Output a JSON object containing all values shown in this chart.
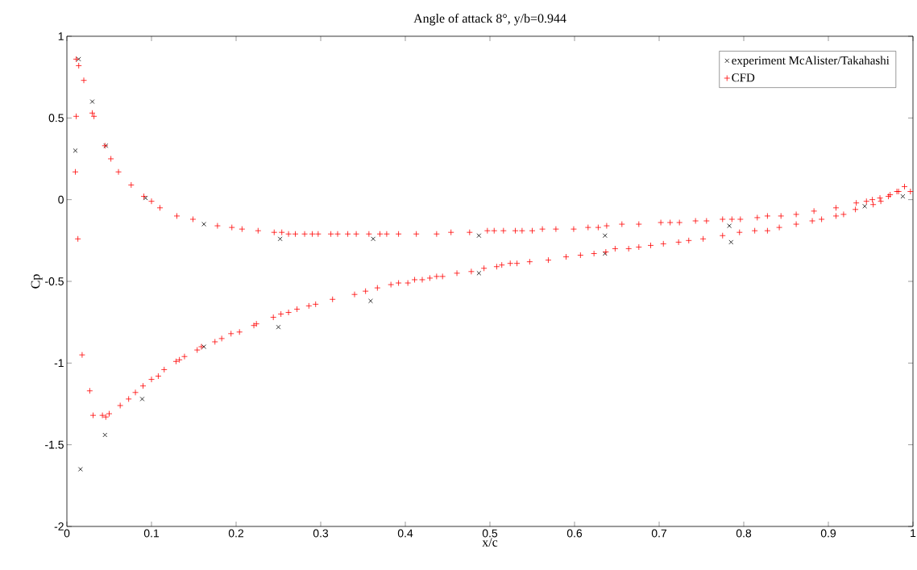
{
  "chart_data": {
    "type": "scatter",
    "title": "Angle of attack 8°, y/b=0.944",
    "xlabel": "x/c",
    "ylabel": "Cp",
    "xlim": [
      0,
      1
    ],
    "ylim": [
      -2,
      1
    ],
    "xticks": [
      0,
      0.1,
      0.2,
      0.3,
      0.4,
      0.5,
      0.6,
      0.7,
      0.8,
      0.9,
      1
    ],
    "yticks": [
      -2,
      -1.5,
      -1,
      -0.5,
      0,
      0.5,
      1
    ],
    "legend": "top right",
    "grid": false,
    "series": [
      {
        "name": "experiment McAlister/Takahashi",
        "color": "#000000",
        "marker": "x",
        "x": [
          0.014,
          0.03,
          0.01,
          0.046,
          0.093,
          0.162,
          0.252,
          0.362,
          0.487,
          0.636,
          0.783,
          0.988,
          0.016,
          0.045,
          0.089,
          0.162,
          0.25,
          0.359,
          0.487,
          0.636,
          0.785,
          0.943
        ],
        "values": [
          0.86,
          0.6,
          0.3,
          0.33,
          0.01,
          -0.15,
          -0.24,
          -0.24,
          -0.22,
          -0.22,
          -0.16,
          0.02,
          -1.65,
          -1.44,
          -1.22,
          -0.9,
          -0.78,
          -0.62,
          -0.45,
          -0.33,
          -0.26,
          -0.04
        ]
      },
      {
        "name": "CFD",
        "color": "#ff0000",
        "marker": "cross",
        "x": [
          0.011,
          0.014,
          0.02,
          0.011,
          0.03,
          0.032,
          0.045,
          0.052,
          0.061,
          0.076,
          0.091,
          0.1,
          0.11,
          0.13,
          0.149,
          0.178,
          0.195,
          0.207,
          0.226,
          0.245,
          0.254,
          0.262,
          0.27,
          0.281,
          0.29,
          0.297,
          0.312,
          0.32,
          0.332,
          0.342,
          0.357,
          0.37,
          0.378,
          0.392,
          0.413,
          0.437,
          0.454,
          0.476,
          0.497,
          0.505,
          0.516,
          0.53,
          0.538,
          0.55,
          0.562,
          0.578,
          0.599,
          0.616,
          0.628,
          0.638,
          0.656,
          0.676,
          0.702,
          0.713,
          0.724,
          0.743,
          0.756,
          0.775,
          0.786,
          0.796,
          0.816,
          0.828,
          0.844,
          0.862,
          0.883,
          0.909,
          0.933,
          0.945,
          0.952,
          0.961,
          0.973,
          0.981,
          0.99,
          0.997,
          0.01,
          0.013,
          0.018,
          0.027,
          0.031,
          0.042,
          0.046,
          0.05,
          0.063,
          0.073,
          0.081,
          0.09,
          0.1,
          0.108,
          0.115,
          0.129,
          0.133,
          0.139,
          0.154,
          0.159,
          0.175,
          0.183,
          0.194,
          0.204,
          0.221,
          0.224,
          0.244,
          0.253,
          0.262,
          0.272,
          0.286,
          0.294,
          0.314,
          0.34,
          0.353,
          0.367,
          0.383,
          0.392,
          0.403,
          0.411,
          0.42,
          0.429,
          0.437,
          0.444,
          0.461,
          0.478,
          0.493,
          0.508,
          0.514,
          0.524,
          0.532,
          0.547,
          0.569,
          0.59,
          0.607,
          0.623,
          0.637,
          0.648,
          0.664,
          0.676,
          0.69,
          0.705,
          0.723,
          0.735,
          0.752,
          0.775,
          0.795,
          0.813,
          0.828,
          0.842,
          0.862,
          0.881,
          0.892,
          0.909,
          0.918,
          0.932,
          0.953,
          0.962,
          0.971,
          0.983
        ],
        "values": [
          0.86,
          0.82,
          0.73,
          0.51,
          0.53,
          0.51,
          0.33,
          0.25,
          0.17,
          0.09,
          0.02,
          -0.01,
          -0.05,
          -0.1,
          -0.12,
          -0.16,
          -0.17,
          -0.18,
          -0.19,
          -0.2,
          -0.2,
          -0.21,
          -0.21,
          -0.21,
          -0.21,
          -0.21,
          -0.21,
          -0.21,
          -0.21,
          -0.21,
          -0.21,
          -0.21,
          -0.21,
          -0.21,
          -0.21,
          -0.21,
          -0.2,
          -0.2,
          -0.19,
          -0.19,
          -0.19,
          -0.19,
          -0.19,
          -0.19,
          -0.18,
          -0.18,
          -0.18,
          -0.17,
          -0.17,
          -0.16,
          -0.15,
          -0.15,
          -0.14,
          -0.14,
          -0.14,
          -0.13,
          -0.13,
          -0.12,
          -0.12,
          -0.12,
          -0.11,
          -0.1,
          -0.1,
          -0.09,
          -0.07,
          -0.05,
          -0.02,
          -0.01,
          0.0,
          0.01,
          0.03,
          0.05,
          0.08,
          0.05,
          0.17,
          -0.24,
          -0.95,
          -1.17,
          -1.32,
          -1.32,
          -1.33,
          -1.31,
          -1.26,
          -1.22,
          -1.18,
          -1.14,
          -1.1,
          -1.08,
          -1.04,
          -0.99,
          -0.98,
          -0.96,
          -0.92,
          -0.9,
          -0.87,
          -0.85,
          -0.82,
          -0.81,
          -0.77,
          -0.76,
          -0.72,
          -0.7,
          -0.69,
          -0.67,
          -0.65,
          -0.64,
          -0.61,
          -0.58,
          -0.56,
          -0.54,
          -0.52,
          -0.51,
          -0.51,
          -0.49,
          -0.49,
          -0.48,
          -0.47,
          -0.47,
          -0.45,
          -0.44,
          -0.42,
          -0.41,
          -0.4,
          -0.39,
          -0.39,
          -0.38,
          -0.37,
          -0.35,
          -0.34,
          -0.33,
          -0.32,
          -0.3,
          -0.3,
          -0.29,
          -0.28,
          -0.27,
          -0.26,
          -0.25,
          -0.24,
          -0.22,
          -0.2,
          -0.19,
          -0.19,
          -0.17,
          -0.15,
          -0.13,
          -0.12,
          -0.1,
          -0.09,
          -0.06,
          -0.03,
          -0.01,
          0.02,
          0.05
        ]
      }
    ]
  }
}
